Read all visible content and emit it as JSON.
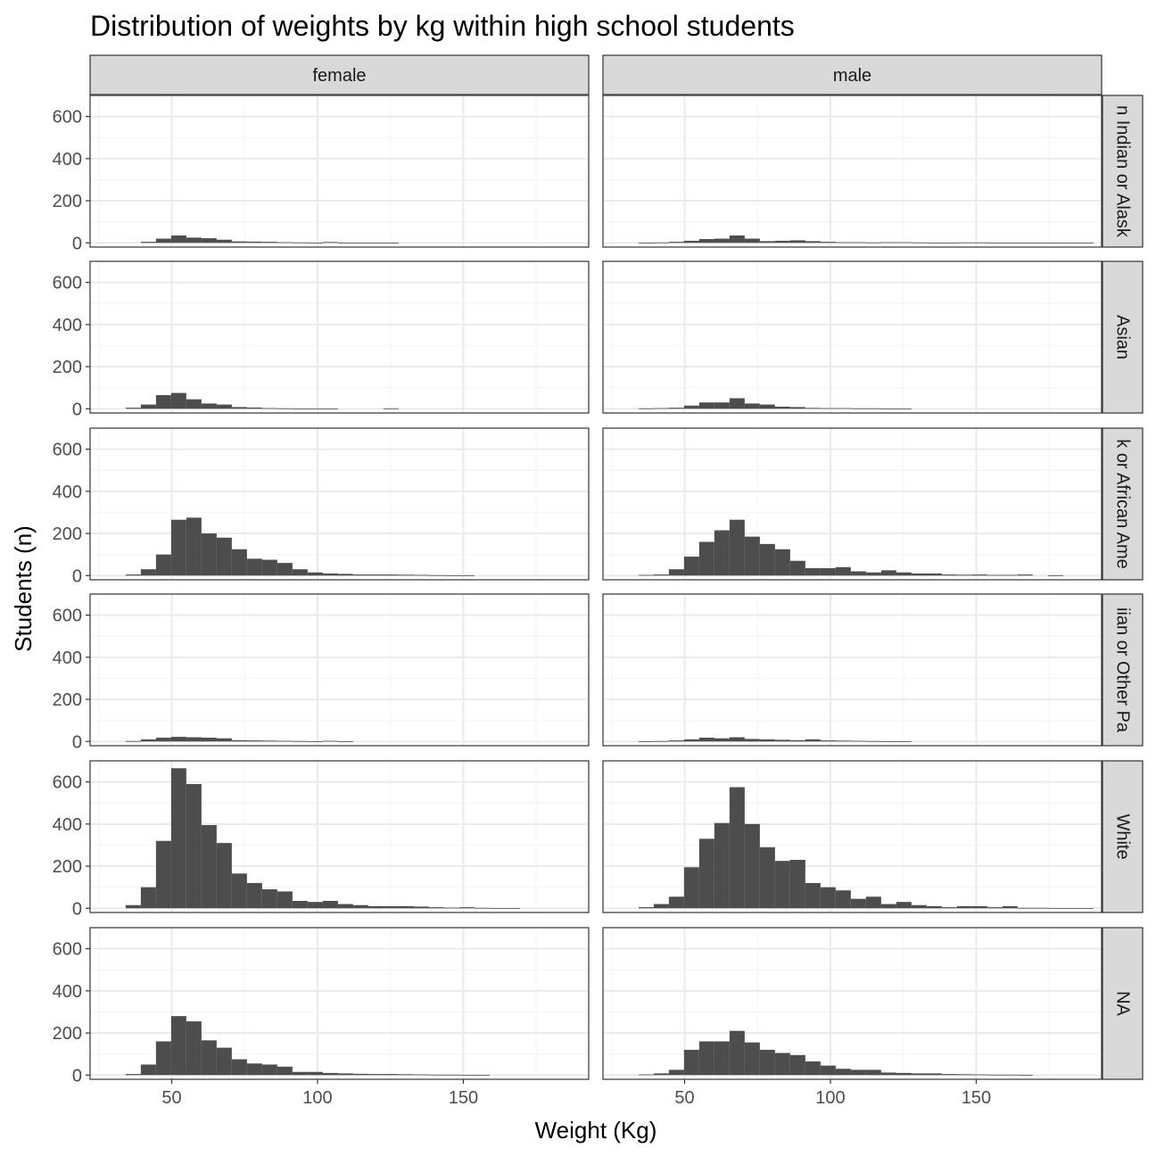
{
  "colors": {
    "bar": "#4d4d4d",
    "strip_fill": "#d9d9d9",
    "panel_border": "#333333",
    "grid_major": "#ebebeb",
    "grid_minor": "#f5f5f5",
    "tick_text": "#4d4d4d"
  },
  "chart_data": {
    "type": "bar",
    "subtype": "faceted-histogram",
    "title": "Distribution of weights by kg within high school students",
    "xlabel": "Weight (Kg)",
    "ylabel": "Students (n)",
    "xlim": [
      22,
      193
    ],
    "ylim": [
      -20,
      700
    ],
    "xticks": [
      50,
      100,
      150
    ],
    "yticks": [
      0,
      200,
      400,
      600
    ],
    "grid": true,
    "bin_width": 5.2,
    "bin_starts": [
      34.2,
      39.4,
      44.6,
      49.8,
      55.0,
      60.2,
      65.4,
      70.6,
      75.8,
      81.0,
      86.2,
      91.4,
      96.6,
      101.8,
      107.0,
      112.2,
      117.4,
      122.6,
      127.8,
      133.0,
      138.2,
      143.4,
      148.6,
      153.8,
      159.0,
      164.2,
      169.4,
      174.6,
      179.8,
      185.0
    ],
    "columns": [
      "female",
      "male"
    ],
    "rows": [
      "n Indian or Alask",
      "Asian",
      "k or African Ame",
      "iian or Other Pa",
      "White",
      "NA"
    ],
    "panels": [
      {
        "row": "n Indian or Alask",
        "column": "female",
        "counts": [
          0,
          5,
          20,
          35,
          25,
          22,
          15,
          7,
          6,
          5,
          3,
          2,
          1,
          4,
          1,
          1,
          1,
          1,
          0,
          0,
          0,
          0,
          0,
          0,
          0,
          0,
          0,
          0,
          0,
          0
        ]
      },
      {
        "row": "n Indian or Alask",
        "column": "male",
        "counts": [
          1,
          2,
          5,
          10,
          18,
          20,
          35,
          20,
          8,
          10,
          12,
          8,
          5,
          3,
          3,
          2,
          3,
          3,
          2,
          1,
          1,
          2,
          2,
          1,
          1,
          1,
          1,
          1,
          1,
          1
        ]
      },
      {
        "row": "Asian",
        "column": "female",
        "counts": [
          5,
          20,
          65,
          75,
          45,
          25,
          20,
          8,
          6,
          3,
          2,
          1,
          1,
          1,
          0,
          0,
          0,
          2,
          0,
          0,
          0,
          0,
          0,
          0,
          0,
          0,
          0,
          0,
          0,
          0
        ]
      },
      {
        "row": "Asian",
        "column": "male",
        "counts": [
          2,
          3,
          5,
          15,
          30,
          30,
          50,
          25,
          20,
          10,
          8,
          4,
          3,
          3,
          2,
          2,
          1,
          1,
          0,
          0,
          0,
          0,
          0,
          0,
          0,
          0,
          0,
          0,
          0,
          0
        ]
      },
      {
        "row": "k or African Ame",
        "column": "female",
        "counts": [
          5,
          30,
          100,
          265,
          275,
          200,
          180,
          125,
          80,
          75,
          60,
          30,
          15,
          10,
          8,
          5,
          5,
          5,
          4,
          3,
          2,
          1,
          1,
          0,
          0,
          0,
          0,
          0,
          0,
          0
        ]
      },
      {
        "row": "k or African Ame",
        "column": "male",
        "counts": [
          3,
          5,
          30,
          90,
          160,
          215,
          265,
          185,
          150,
          125,
          70,
          35,
          35,
          40,
          20,
          15,
          25,
          15,
          10,
          10,
          5,
          4,
          5,
          3,
          3,
          5,
          0,
          1,
          0,
          0
        ]
      },
      {
        "row": "iian or Other Pa",
        "column": "female",
        "counts": [
          2,
          10,
          18,
          22,
          20,
          18,
          15,
          6,
          5,
          4,
          3,
          2,
          1,
          3,
          1,
          0,
          0,
          0,
          0,
          0,
          0,
          0,
          0,
          0,
          0,
          0,
          0,
          0,
          0,
          0
        ]
      },
      {
        "row": "iian or Other Pa",
        "column": "male",
        "counts": [
          1,
          2,
          5,
          10,
          18,
          15,
          20,
          12,
          10,
          8,
          6,
          10,
          5,
          4,
          3,
          2,
          1,
          1,
          0,
          0,
          0,
          0,
          0,
          0,
          0,
          0,
          0,
          0,
          0,
          0
        ]
      },
      {
        "row": "White",
        "column": "female",
        "counts": [
          15,
          100,
          320,
          665,
          590,
          395,
          310,
          165,
          120,
          90,
          80,
          35,
          30,
          35,
          20,
          15,
          10,
          10,
          10,
          8,
          5,
          3,
          5,
          2,
          1,
          1,
          0,
          0,
          0,
          0
        ]
      },
      {
        "row": "White",
        "column": "male",
        "counts": [
          5,
          20,
          55,
          195,
          330,
          405,
          575,
          400,
          290,
          225,
          230,
          120,
          100,
          85,
          45,
          55,
          20,
          30,
          15,
          10,
          5,
          10,
          10,
          5,
          10,
          2,
          2,
          1,
          1,
          1
        ]
      },
      {
        "row": "NA",
        "column": "female",
        "counts": [
          5,
          50,
          160,
          280,
          255,
          165,
          130,
          75,
          55,
          50,
          40,
          15,
          15,
          10,
          8,
          6,
          5,
          5,
          4,
          3,
          2,
          2,
          1,
          1,
          0,
          0,
          0,
          0,
          0,
          0
        ]
      },
      {
        "row": "NA",
        "column": "male",
        "counts": [
          3,
          8,
          25,
          120,
          160,
          160,
          210,
          155,
          120,
          105,
          95,
          65,
          45,
          30,
          25,
          25,
          12,
          10,
          8,
          8,
          5,
          4,
          3,
          2,
          2,
          1,
          0,
          0,
          0,
          0
        ]
      }
    ]
  }
}
